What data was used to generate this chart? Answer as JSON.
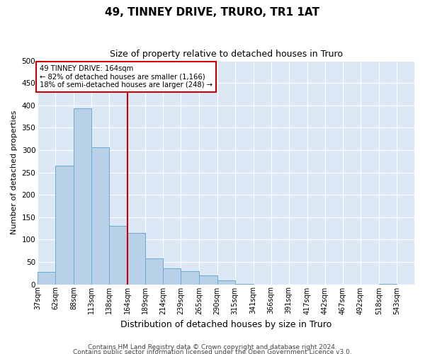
{
  "title": "49, TINNEY DRIVE, TRURO, TR1 1AT",
  "subtitle": "Size of property relative to detached houses in Truro",
  "xlabel": "Distribution of detached houses by size in Truro",
  "ylabel": "Number of detached properties",
  "footer1": "Contains HM Land Registry data © Crown copyright and database right 2024.",
  "footer2": "Contains public sector information licensed under the Open Government Licence v3.0.",
  "bar_left_edges": [
    37,
    62,
    88,
    113,
    138,
    164,
    189,
    214,
    239,
    265,
    290,
    315,
    341,
    366,
    391,
    417,
    442,
    467,
    492,
    518,
    543
  ],
  "bar_heights": [
    27,
    265,
    393,
    307,
    130,
    115,
    58,
    35,
    30,
    20,
    8,
    1,
    0,
    0,
    0,
    0,
    0,
    0,
    0,
    1,
    0
  ],
  "bar_color": "#b8d0e8",
  "bar_edge_color": "#6aaad4",
  "vline_x": 164,
  "vline_color": "#cc0000",
  "annotation_line1": "49 TINNEY DRIVE: 164sqm",
  "annotation_line2": "← 82% of detached houses are smaller (1,166)",
  "annotation_line3": "18% of semi-detached houses are larger (248) →",
  "annotation_box_color": "#cc0000",
  "ylim": [
    0,
    500
  ],
  "yticks": [
    0,
    50,
    100,
    150,
    200,
    250,
    300,
    350,
    400,
    450,
    500
  ],
  "tick_labels": [
    "37sqm",
    "62sqm",
    "88sqm",
    "113sqm",
    "138sqm",
    "164sqm",
    "189sqm",
    "214sqm",
    "239sqm",
    "265sqm",
    "290sqm",
    "315sqm",
    "341sqm",
    "366sqm",
    "391sqm",
    "417sqm",
    "442sqm",
    "467sqm",
    "492sqm",
    "518sqm",
    "543sqm"
  ],
  "background_color": "#dce8f5",
  "grid_color": "#ffffff",
  "title_fontsize": 11,
  "subtitle_fontsize": 9,
  "xlabel_fontsize": 9,
  "ylabel_fontsize": 8,
  "tick_fontsize": 7,
  "footer_fontsize": 6.5
}
